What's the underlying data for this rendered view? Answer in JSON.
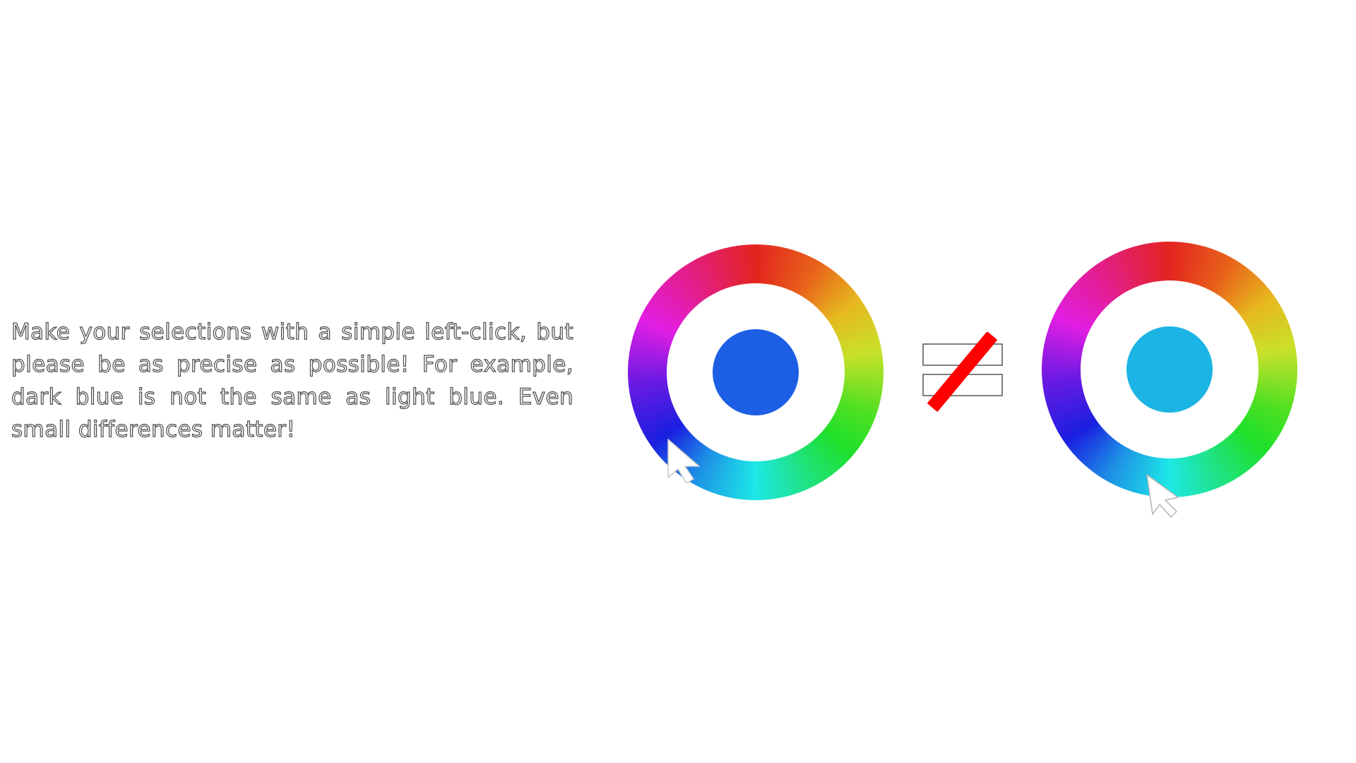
{
  "instructions": {
    "text": "Make your selections with a simple left-click, but please be as precise as possible! For example, dark blue is not the same as light blue. Even small differences matter!"
  },
  "left_wheel": {
    "icon": "color-wheel-icon",
    "selected_color": "#1c5fe4"
  },
  "right_wheel": {
    "icon": "color-wheel-icon",
    "selected_color": "#1bb4e4"
  },
  "comparison": {
    "icon": "not-equal-icon",
    "strike_color": "#ff0000"
  },
  "cursors": {
    "icon": "mouse-pointer-icon"
  }
}
